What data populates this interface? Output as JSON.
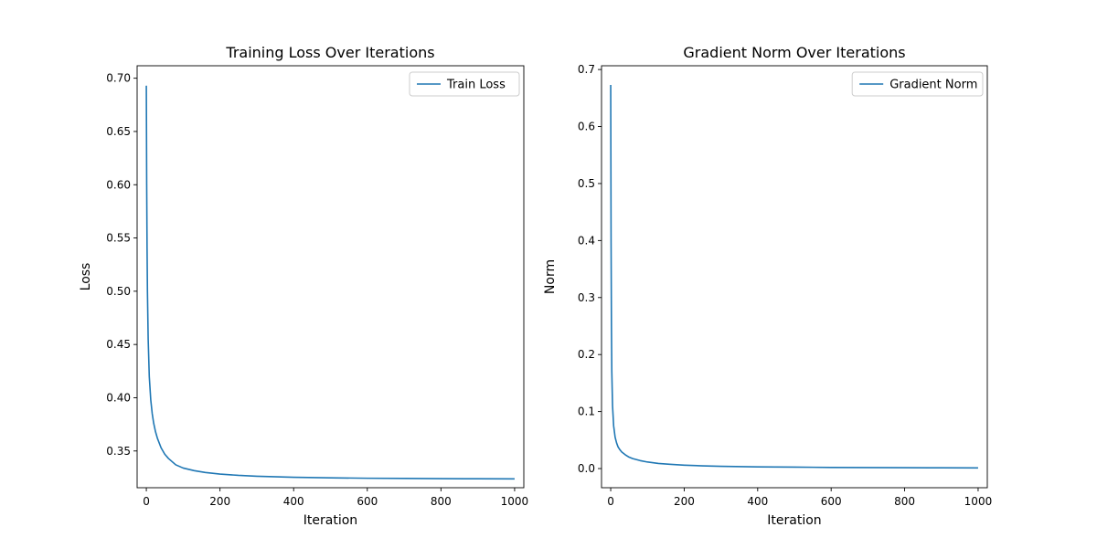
{
  "chart_data": [
    {
      "type": "line",
      "title": "Training Loss Over Iterations",
      "xlabel": "Iteration",
      "ylabel": "Loss",
      "xlim": [
        -25,
        1025
      ],
      "ylim": [
        0.3155,
        0.7117
      ],
      "xticks": [
        0,
        200,
        400,
        600,
        800,
        1000
      ],
      "yticks": [
        0.35,
        0.4,
        0.45,
        0.5,
        0.55,
        0.6,
        0.65,
        0.7
      ],
      "ytick_decimals": 2,
      "grid": false,
      "legend_position": "top-right",
      "series": [
        {
          "name": "Train Loss",
          "color": "#1f77b4",
          "x": [
            0,
            1,
            2,
            3,
            5,
            8,
            12,
            16,
            20,
            25,
            30,
            40,
            50,
            60,
            80,
            100,
            130,
            160,
            200,
            250,
            300,
            400,
            500,
            600,
            700,
            800,
            900,
            1000
          ],
          "y": [
            0.693,
            0.6,
            0.54,
            0.5,
            0.455,
            0.42,
            0.398,
            0.385,
            0.376,
            0.368,
            0.362,
            0.353,
            0.347,
            0.343,
            0.337,
            0.334,
            0.3315,
            0.3298,
            0.3283,
            0.3271,
            0.3263,
            0.3253,
            0.3248,
            0.3244,
            0.3242,
            0.324,
            0.3239,
            0.3238
          ]
        }
      ]
    },
    {
      "type": "line",
      "title": "Gradient Norm Over Iterations",
      "xlabel": "Iteration",
      "ylabel": "Norm",
      "xlim": [
        -25,
        1025
      ],
      "ylim": [
        -0.0336,
        0.7066
      ],
      "xticks": [
        0,
        200,
        400,
        600,
        800,
        1000
      ],
      "yticks": [
        0.0,
        0.1,
        0.2,
        0.3,
        0.4,
        0.5,
        0.6,
        0.7
      ],
      "ytick_decimals": 1,
      "grid": false,
      "legend_position": "top-right",
      "series": [
        {
          "name": "Gradient Norm",
          "color": "#1f77b4",
          "x": [
            0,
            1,
            2,
            3,
            5,
            8,
            12,
            16,
            20,
            25,
            30,
            40,
            50,
            60,
            80,
            100,
            130,
            160,
            200,
            250,
            300,
            400,
            500,
            600,
            700,
            800,
            900,
            1000
          ],
          "y": [
            0.673,
            0.4,
            0.25,
            0.17,
            0.11,
            0.075,
            0.055,
            0.045,
            0.038,
            0.033,
            0.029,
            0.024,
            0.02,
            0.0175,
            0.014,
            0.0115,
            0.009,
            0.0075,
            0.006,
            0.0048,
            0.004,
            0.003,
            0.0025,
            0.002,
            0.0017,
            0.0015,
            0.0013,
            0.0012
          ]
        }
      ]
    }
  ]
}
